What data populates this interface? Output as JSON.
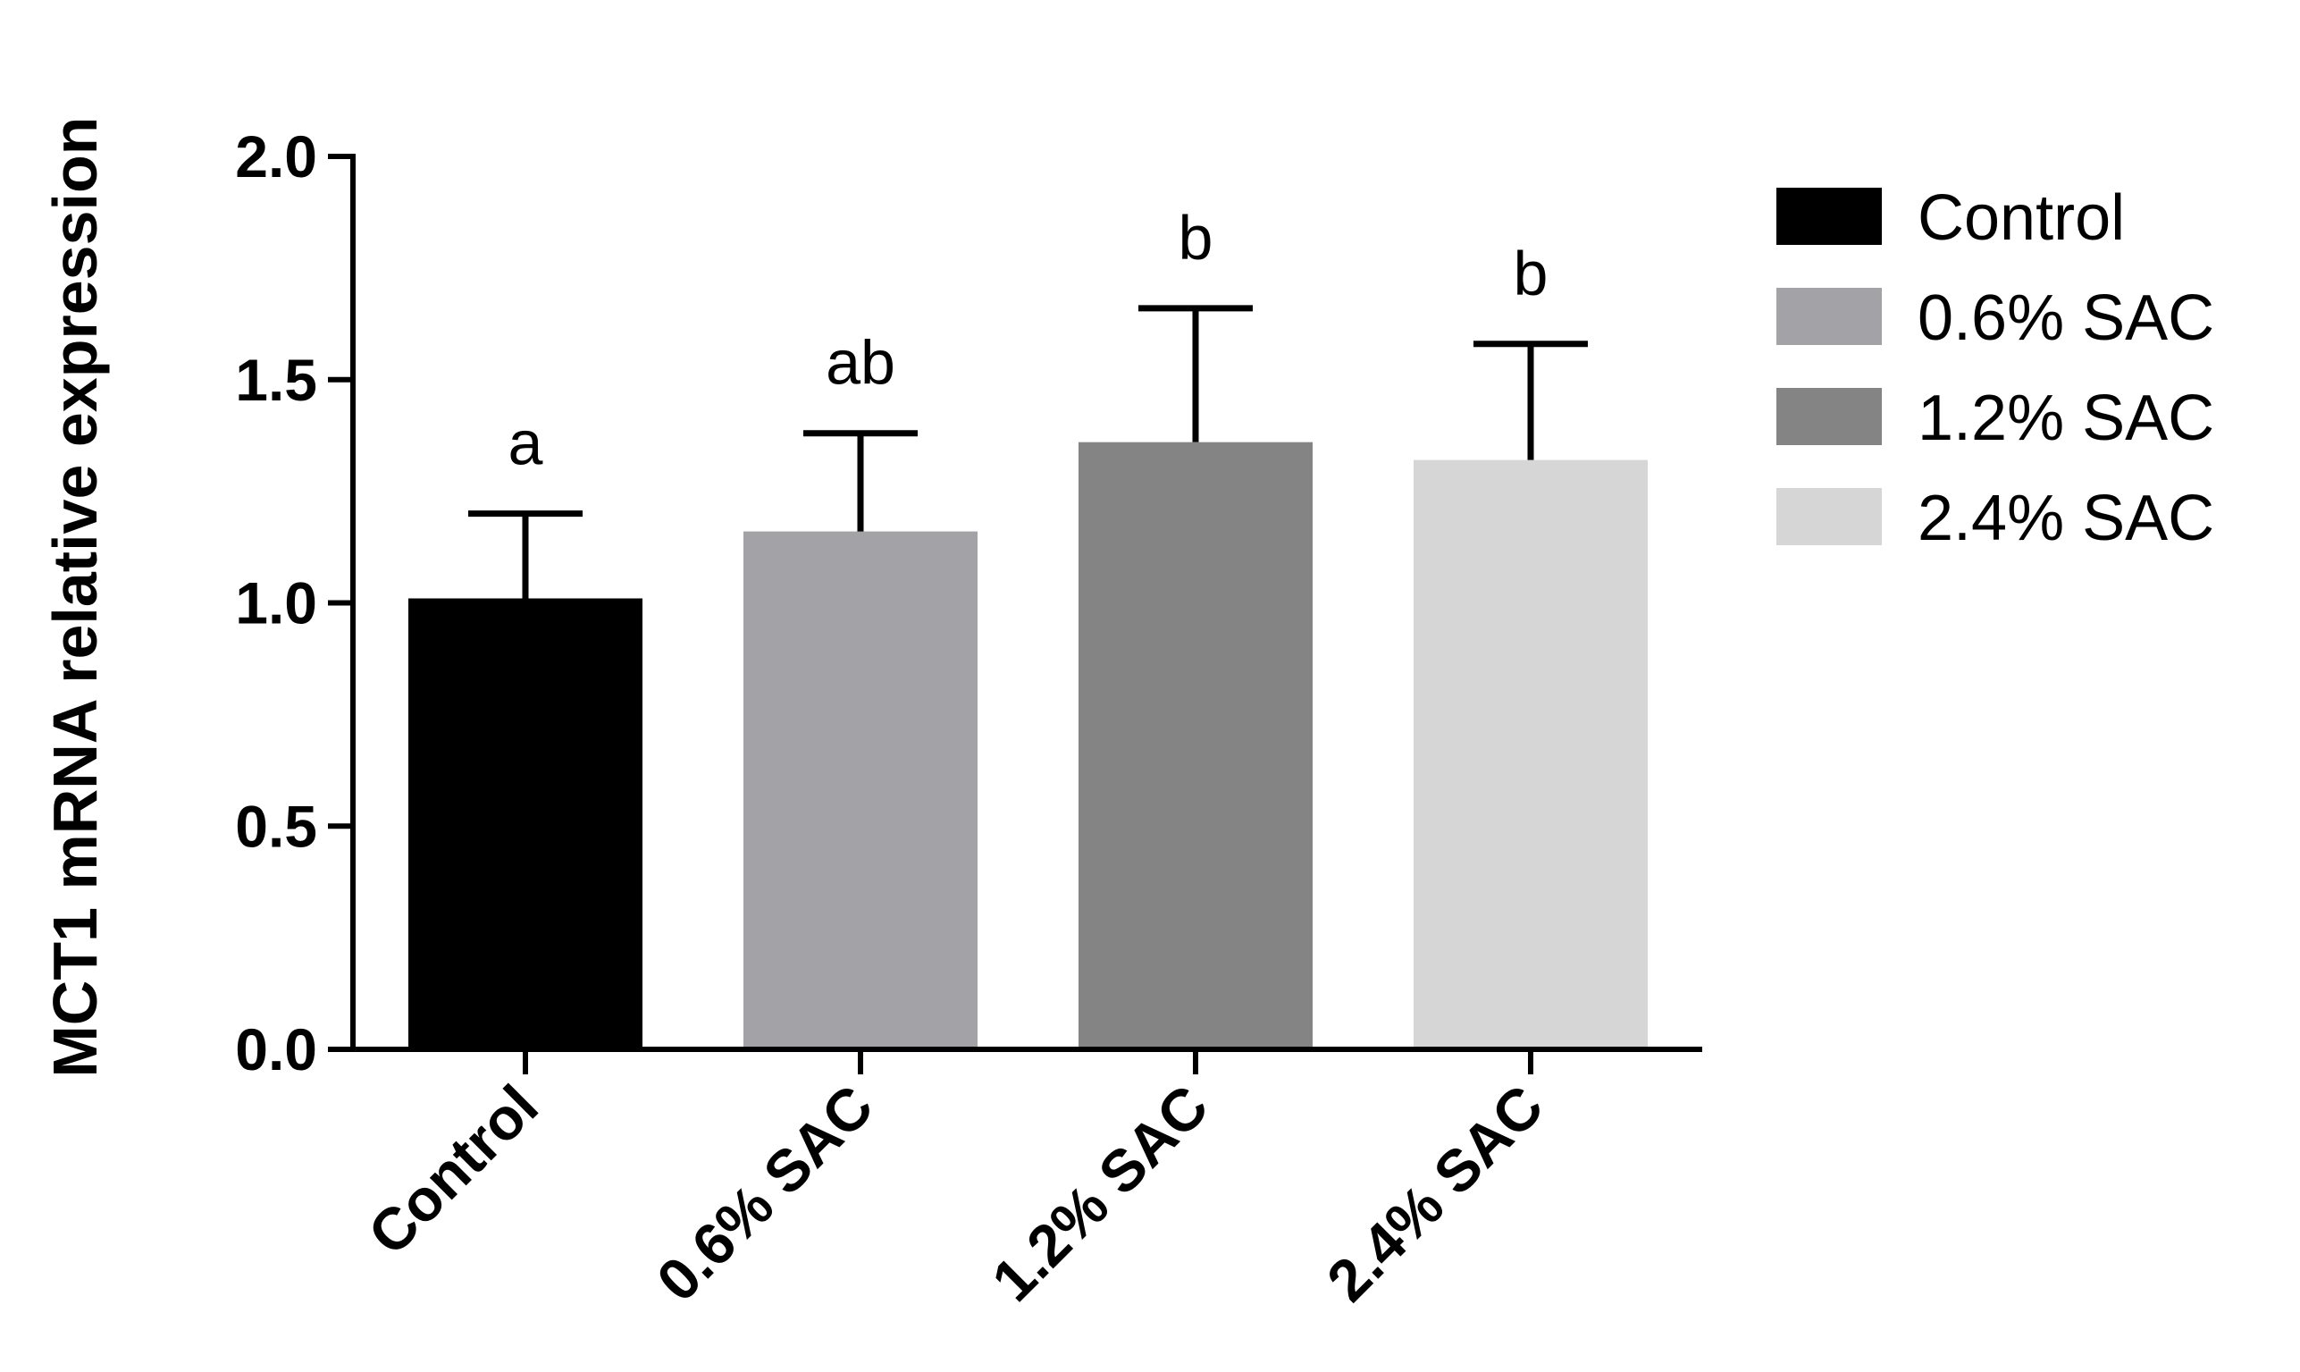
{
  "chart_data": {
    "type": "bar",
    "ylabel": "MCT1 mRNA relative expression",
    "xlabel": "",
    "ylim": [
      0,
      2.0
    ],
    "yticks": [
      "0.0",
      "0.5",
      "1.0",
      "1.5",
      "2.0"
    ],
    "categories": [
      "Control",
      "0.6% SAC",
      "1.2% SAC",
      "2.4% SAC"
    ],
    "values": [
      1.01,
      1.16,
      1.36,
      1.32
    ],
    "errors": [
      0.19,
      0.22,
      0.3,
      0.26
    ],
    "significance_labels": [
      "a",
      "ab",
      "b",
      "b"
    ],
    "colors": [
      "#000000",
      "#a3a2a7",
      "#848484",
      "#d6d6d6"
    ],
    "legend": {
      "position": "right",
      "entries": [
        "Control",
        "0.6% SAC",
        "1.2% SAC",
        "2.4% SAC"
      ]
    },
    "grid": false
  }
}
